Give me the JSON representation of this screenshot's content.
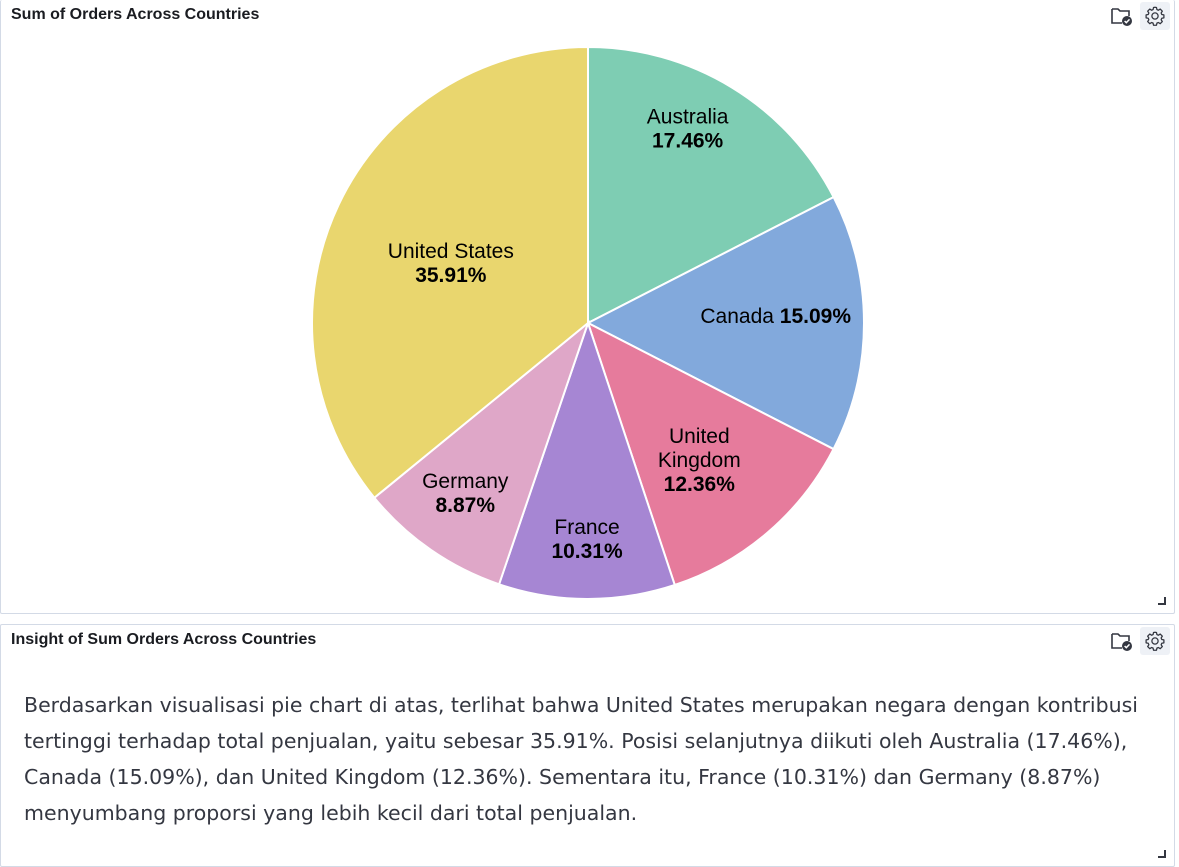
{
  "chart_panel": {
    "title": "Sum of Orders Across Countries"
  },
  "insight_panel": {
    "title": "Insight of Sum Orders Across Countries",
    "text": "Berdasarkan visualisasi pie chart di atas, terlihat bahwa United States merupakan negara dengan kontribusi tertinggi terhadap total penjualan, yaitu sebesar 35.91%. Posisi selanjutnya diikuti oleh Australia (17.46%), Canada (15.09%), dan United Kingdom (12.36%). Sementara itu, France (10.31%) dan Germany (8.87%) menyumbang proporsi yang lebih kecil dari total penjualan."
  },
  "icons": {
    "folder": "folder-check-icon",
    "gear": "gear-icon"
  },
  "chart_data": {
    "type": "pie",
    "title": "Sum of Orders Across Countries",
    "slices": [
      {
        "label": "Australia",
        "value": 17.46,
        "display": "17.46%",
        "color": "#7ecdb3"
      },
      {
        "label": "Canada",
        "value": 15.09,
        "display": "15.09%",
        "color": "#82a9dc"
      },
      {
        "label": "United Kingdom",
        "value": 12.36,
        "display": "12.36%",
        "color": "#e67b9c"
      },
      {
        "label": "France",
        "value": 10.31,
        "display": "10.31%",
        "color": "#a686d3"
      },
      {
        "label": "Germany",
        "value": 8.87,
        "display": "8.87%",
        "color": "#dfa7c8"
      },
      {
        "label": "United States",
        "value": 35.91,
        "display": "35.91%",
        "color": "#e9d66e"
      }
    ],
    "start_angle": "12 o'clock",
    "direction": "clockwise",
    "legend": "none"
  }
}
